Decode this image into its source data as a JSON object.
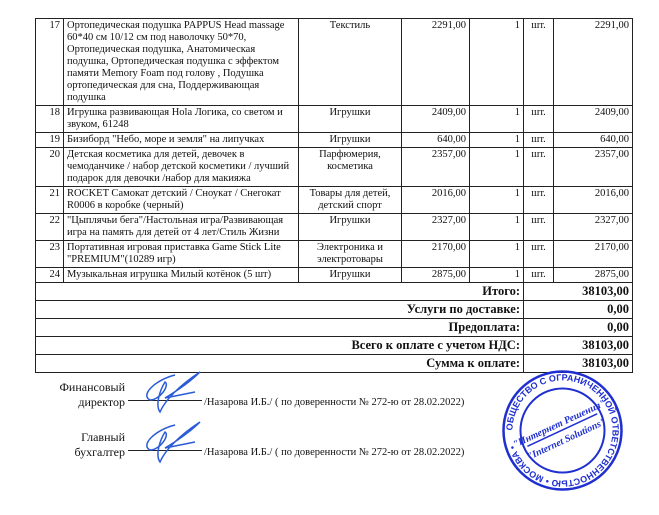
{
  "rows": [
    {
      "n": "17",
      "name": "Ортопедическая подушка PAPPUS Head massage 60*40 см 10/12 см под наволочку 50*70, Ортопедическая подушка, Анатомическая подушка, Ортопедическая подушка с эффектом памяти Memory Foam под голову , Подушка ортопедическая для сна, Поддерживающая подушка",
      "cat": "Текстиль",
      "price": "2291,00",
      "qty": "1",
      "unit": "шт.",
      "total": "2291,00"
    },
    {
      "n": "18",
      "name": "Игрушка развивающая Hola Логика, со светом и звуком, 61248",
      "cat": "Игрушки",
      "price": "2409,00",
      "qty": "1",
      "unit": "шт.",
      "total": "2409,00"
    },
    {
      "n": "19",
      "name": "Бизиборд \"Небо, море и земля\" на липучках",
      "cat": "Игрушки",
      "price": "640,00",
      "qty": "1",
      "unit": "шт.",
      "total": "640,00"
    },
    {
      "n": "20",
      "name": "Детская косметика для детей, девочек в чемоданчике / набор детской  косметики  / лучший подарок для девочки /набор для макияжа",
      "cat": "Парфюмерия, косметика",
      "price": "2357,00",
      "qty": "1",
      "unit": "шт.",
      "total": "2357,00"
    },
    {
      "n": "21",
      "name": "ROCKET Самокат детский / Сноукат / Снегокат R0006 в коробке (черный)",
      "cat": "Товары для детей, детский спорт",
      "price": "2016,00",
      "qty": "1",
      "unit": "шт.",
      "total": "2016,00"
    },
    {
      "n": "22",
      "name": "\"Цыплячьи бега\"/Настольная игра/Развивающая игра на память для детей от 4 лет/Стиль Жизни",
      "cat": "Игрушки",
      "price": "2327,00",
      "qty": "1",
      "unit": "шт.",
      "total": "2327,00"
    },
    {
      "n": "23",
      "name": "Портативная игровая приставка Game Stick Lite \"PREMIUM\"(10289 игр)",
      "cat": "Электроника и электротовары",
      "price": "2170,00",
      "qty": "1",
      "unit": "шт.",
      "total": "2170,00"
    },
    {
      "n": "24",
      "name": "Музыкальная игрушка Милый котёнок (5 шт)",
      "cat": "Игрушки",
      "price": "2875,00",
      "qty": "1",
      "unit": "шт.",
      "total": "2875,00"
    }
  ],
  "totals": [
    {
      "label": "Итого:",
      "value": "38103,00"
    },
    {
      "label": "Услуги по доставке:",
      "value": "0,00"
    },
    {
      "label": "Предоплата:",
      "value": "0,00"
    },
    {
      "label": "Всего к оплате с учетом НДС:",
      "value": "38103,00"
    },
    {
      "label": "Сумма к оплате:",
      "value": "38103,00"
    }
  ],
  "signatures": [
    {
      "role1": "Финансовый",
      "role2": "директор",
      "note": "/Назарова И.Б./ ( по доверенности № 272-ю от 28.02.2022)"
    },
    {
      "role1": "Главный",
      "role2": "бухгалтер",
      "note": "/Назарова И.Б./ ( по доверенности № 272-ю от 28.02.2022)"
    }
  ],
  "stamp": {
    "outer": "ОБЩЕСТВО С ОГРАНИЧЕННОЙ ОТВЕТСТВЕННОСТЬЮ • МОСКВА •",
    "inner1": "\"Интернет Решения\"",
    "inner2": "\"Internet Solutions\"",
    "color": "#1f2fd0"
  },
  "signature_color": "#2a5bd7"
}
